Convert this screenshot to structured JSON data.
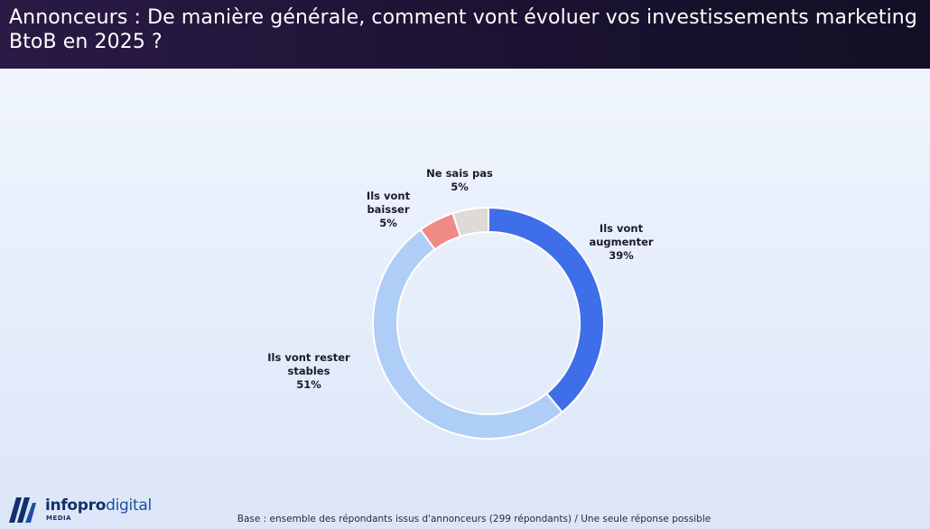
{
  "header": {
    "title": "Annonceurs : De manière générale, comment vont évoluer vos investissements marketing BtoB en 2025 ?"
  },
  "chart_data": {
    "type": "pie",
    "variant": "donut",
    "slices": [
      {
        "label": "Ils vont augmenter",
        "label_lines": [
          "Ils vont",
          "augmenter"
        ],
        "value": 39,
        "display": "39%",
        "color": "#3f6ee9"
      },
      {
        "label": "Ils vont rester stables",
        "label_lines": [
          "Ils vont rester",
          "stables"
        ],
        "value": 51,
        "display": "51%",
        "color": "#aecdf7"
      },
      {
        "label": "Ils vont baisser",
        "label_lines": [
          "Ils vont",
          "baisser"
        ],
        "value": 5,
        "display": "5%",
        "color": "#ef8a86"
      },
      {
        "label": "Ne sais pas",
        "label_lines": [
          "Ne sais pas"
        ],
        "value": 5,
        "display": "5%",
        "color": "#dedbd6"
      }
    ]
  },
  "footer": {
    "note": "Base : ensemble des répondants issus d'annonceurs (299 répondants) / Une seule réponse possible"
  },
  "logo": {
    "brand_bold": "infopro",
    "brand_light": "digital",
    "sub": "MEDIA",
    "colors": {
      "primary": "#12306b",
      "secondary": "#1d4ea0"
    }
  }
}
